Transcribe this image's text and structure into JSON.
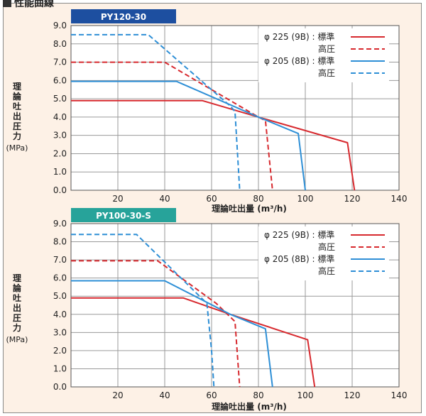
{
  "heading": "性能曲線",
  "legend": {
    "labels": [
      "φ 225 (9B) : 標準",
      "高圧",
      "φ 205 (8B) : 標準",
      "高圧"
    ]
  },
  "axes": {
    "xlabel": "理論吐出量 (m³/h)",
    "ylabel_chars": [
      "理",
      "論",
      "吐",
      "出",
      "圧",
      "力"
    ],
    "ylabel_unit": "(MPa)"
  },
  "colors": {
    "red": "#d7292e",
    "blue": "#2e8fd6",
    "tab1": "#1d4fa0",
    "tab2": "#27a39a"
  },
  "chart_data": [
    {
      "type": "line",
      "title": "PY120-30",
      "xlabel": "理論吐出量 (m³/h)",
      "ylabel": "理論吐出圧力 (MPa)",
      "xlim": [
        0,
        140
      ],
      "ylim": [
        0,
        9
      ],
      "x_ticks": [
        0,
        20,
        40,
        60,
        80,
        100,
        120,
        140
      ],
      "y_ticks": [
        0,
        1,
        2,
        3,
        4,
        5,
        6,
        7,
        8,
        9
      ],
      "grid": true,
      "legend_position": "top-right",
      "series": [
        {
          "name": "φ 225 (9B) : 標準",
          "color": "red",
          "dash": false,
          "x": [
            0,
            56,
            80,
            118,
            121
          ],
          "y": [
            4.9,
            4.9,
            4.0,
            2.6,
            0
          ]
        },
        {
          "name": "φ 225 (9B) : 高圧",
          "color": "red",
          "dash": true,
          "x": [
            0,
            40,
            80,
            83,
            86
          ],
          "y": [
            7.0,
            7.0,
            4.0,
            3.8,
            0
          ]
        },
        {
          "name": "φ 205 (8B) : 標準",
          "color": "blue",
          "dash": false,
          "x": [
            0,
            45,
            80,
            97,
            100
          ],
          "y": [
            5.95,
            5.95,
            4.0,
            3.1,
            0
          ]
        },
        {
          "name": "φ 205 (8B) : 高圧",
          "color": "blue",
          "dash": true,
          "x": [
            0,
            33,
            68,
            70,
            72
          ],
          "y": [
            8.5,
            8.5,
            4.6,
            4.3,
            0
          ]
        }
      ]
    },
    {
      "type": "line",
      "title": "PY100-30-S",
      "xlabel": "理論吐出量 (m³/h)",
      "ylabel": "理論吐出圧力 (MPa)",
      "xlim": [
        0,
        140
      ],
      "ylim": [
        0,
        9
      ],
      "x_ticks": [
        0,
        20,
        40,
        60,
        80,
        100,
        120,
        140
      ],
      "y_ticks": [
        0,
        1,
        2,
        3,
        4,
        5,
        6,
        7,
        8,
        9
      ],
      "grid": true,
      "legend_position": "top-right",
      "series": [
        {
          "name": "φ 225 (9B) : 標準",
          "color": "red",
          "dash": false,
          "x": [
            0,
            48,
            68,
            101,
            104
          ],
          "y": [
            4.9,
            4.9,
            4.0,
            2.6,
            0
          ]
        },
        {
          "name": "φ 225 (9B) : 高圧",
          "color": "red",
          "dash": true,
          "x": [
            0,
            37,
            62,
            70,
            72
          ],
          "y": [
            6.95,
            6.95,
            4.6,
            3.6,
            0
          ]
        },
        {
          "name": "φ 205 (8B) : 標準",
          "color": "blue",
          "dash": false,
          "x": [
            0,
            40,
            68,
            83,
            86
          ],
          "y": [
            5.85,
            5.85,
            4.0,
            3.2,
            0
          ]
        },
        {
          "name": "φ 205 (8B) : 高圧",
          "color": "blue",
          "dash": true,
          "x": [
            0,
            28,
            58,
            60,
            61
          ],
          "y": [
            8.4,
            8.4,
            4.6,
            2.0,
            0
          ]
        }
      ]
    }
  ]
}
